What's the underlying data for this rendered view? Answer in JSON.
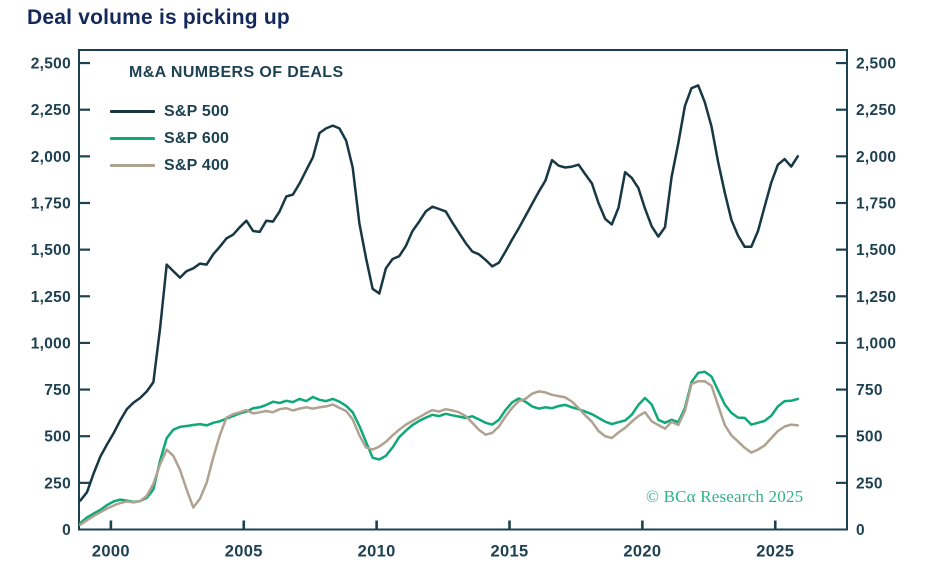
{
  "page_title": "Deal volume is picking up",
  "chart": {
    "watermark": "© BCα Research 2025",
    "colors": {
      "page_title": "#14295b",
      "axis": "#1e4152",
      "tick_text": "#1e4152",
      "watermark": "#2fb388",
      "background": "#ffffff"
    }
  },
  "chart_data": {
    "type": "line",
    "title": "M&A NUMBERS OF DEALS",
    "xlabel": "",
    "ylabel": "",
    "grid": false,
    "legend_position": "top-left",
    "x_axis": {
      "range": [
        1998.8,
        2027.7
      ],
      "ticks": [
        2000,
        2005,
        2010,
        2015,
        2020,
        2025
      ],
      "start": 1998.85,
      "step": 0.25,
      "unit": "year"
    },
    "y_axis": {
      "range": [
        0,
        2570
      ],
      "ticks": [
        0,
        250,
        500,
        750,
        1000,
        1250,
        1500,
        1750,
        2000,
        2250,
        2500
      ],
      "tick_labels": [
        "0",
        "250",
        "500",
        "750",
        "1,000",
        "1,250",
        "1,500",
        "1,750",
        "2,000",
        "2,250",
        "2,500"
      ],
      "sides": "both"
    },
    "series": [
      {
        "name": "S&P 500",
        "color": "#173744",
        "values": [
          155,
          200,
          300,
          390,
          455,
          515,
          585,
          645,
          680,
          705,
          740,
          790,
          1080,
          1420,
          1385,
          1350,
          1385,
          1400,
          1425,
          1420,
          1475,
          1515,
          1560,
          1580,
          1620,
          1655,
          1600,
          1595,
          1655,
          1650,
          1705,
          1785,
          1795,
          1855,
          1925,
          1995,
          2125,
          2150,
          2165,
          2150,
          2085,
          1940,
          1640,
          1455,
          1290,
          1265,
          1400,
          1450,
          1465,
          1520,
          1600,
          1650,
          1705,
          1730,
          1718,
          1705,
          1645,
          1590,
          1535,
          1490,
          1475,
          1445,
          1410,
          1430,
          1490,
          1555,
          1615,
          1680,
          1745,
          1810,
          1870,
          1980,
          1950,
          1940,
          1945,
          1955,
          1905,
          1855,
          1750,
          1665,
          1635,
          1725,
          1915,
          1885,
          1830,
          1720,
          1625,
          1570,
          1620,
          1890,
          2070,
          2270,
          2365,
          2380,
          2290,
          2160,
          1970,
          1805,
          1660,
          1575,
          1515,
          1515,
          1600,
          1730,
          1860,
          1955,
          1985,
          1945,
          2000
        ]
      },
      {
        "name": "S&P 600",
        "color": "#0fa878",
        "values": [
          35,
          65,
          85,
          105,
          130,
          150,
          160,
          155,
          148,
          152,
          170,
          215,
          370,
          490,
          535,
          550,
          555,
          560,
          565,
          558,
          572,
          580,
          595,
          608,
          622,
          632,
          650,
          655,
          668,
          685,
          678,
          690,
          683,
          700,
          688,
          710,
          695,
          688,
          700,
          685,
          663,
          628,
          555,
          470,
          385,
          375,
          395,
          440,
          495,
          530,
          560,
          582,
          600,
          615,
          608,
          620,
          612,
          605,
          598,
          607,
          590,
          572,
          562,
          588,
          640,
          682,
          702,
          685,
          660,
          648,
          655,
          650,
          662,
          668,
          655,
          645,
          632,
          618,
          598,
          578,
          565,
          575,
          585,
          615,
          668,
          705,
          670,
          588,
          572,
          588,
          575,
          650,
          790,
          840,
          845,
          820,
          745,
          670,
          625,
          600,
          598,
          562,
          572,
          582,
          610,
          660,
          688,
          690,
          700
        ]
      },
      {
        "name": "S&P 400",
        "color": "#b0a290",
        "values": [
          25,
          50,
          72,
          92,
          112,
          128,
          142,
          150,
          145,
          152,
          180,
          245,
          350,
          428,
          395,
          320,
          215,
          118,
          165,
          250,
          385,
          505,
          600,
          618,
          628,
          640,
          622,
          628,
          635,
          628,
          645,
          650,
          638,
          648,
          655,
          648,
          655,
          660,
          670,
          652,
          635,
          590,
          505,
          440,
          428,
          445,
          470,
          505,
          535,
          562,
          582,
          602,
          622,
          640,
          632,
          645,
          638,
          628,
          608,
          572,
          535,
          508,
          518,
          552,
          605,
          652,
          688,
          700,
          728,
          740,
          735,
          722,
          715,
          708,
          685,
          650,
          612,
          578,
          528,
          500,
          490,
          520,
          545,
          578,
          608,
          628,
          580,
          560,
          540,
          578,
          560,
          635,
          780,
          795,
          795,
          770,
          665,
          560,
          505,
          472,
          438,
          412,
          428,
          450,
          490,
          528,
          552,
          562,
          558
        ]
      }
    ]
  }
}
